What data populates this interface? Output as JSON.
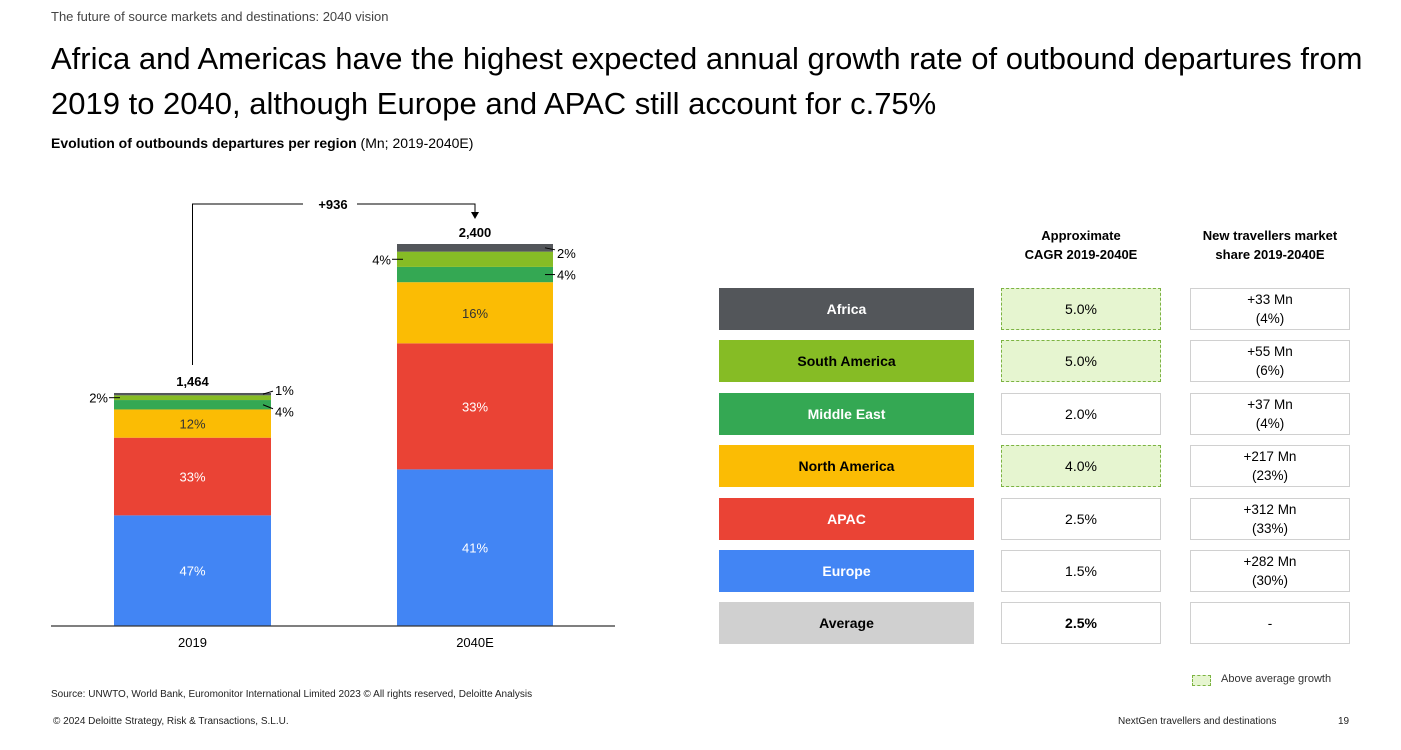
{
  "header": {
    "supertitle": "The future of source markets and destinations: 2040 vision",
    "title": "Africa and Americas have the highest expected annual growth rate of outbound departures from 2019 to 2040, although Europe and APAC still account for c.75%",
    "subtitle_bold": "Evolution of outbounds departures per region",
    "subtitle_rest": " (Mn; 2019-2040E)"
  },
  "chart_data": {
    "type": "bar",
    "stacked": true,
    "title": "Evolution of outbounds departures per region",
    "units": "Mn",
    "categories": [
      "2019",
      "2040E"
    ],
    "totals": [
      1464,
      2400
    ],
    "total_labels": [
      "1,464",
      "2,400"
    ],
    "growth_annotation": "+936",
    "series": [
      {
        "name": "Europe",
        "color": "#4285f4",
        "shares_pct": [
          47,
          41
        ],
        "labels": [
          "47%",
          "41%"
        ]
      },
      {
        "name": "APAC",
        "color": "#ea4335",
        "shares_pct": [
          33,
          33
        ],
        "labels": [
          "33%",
          "33%"
        ]
      },
      {
        "name": "North America",
        "color": "#fbbc04",
        "shares_pct": [
          12,
          16
        ],
        "labels": [
          "12%",
          "16%"
        ]
      },
      {
        "name": "Middle East",
        "color": "#34a853",
        "shares_pct": [
          4,
          4
        ],
        "labels": [
          "4%",
          "4%"
        ]
      },
      {
        "name": "South America",
        "color": "#86bc25",
        "shares_pct": [
          2,
          4
        ],
        "labels": [
          "2%",
          "4%"
        ]
      },
      {
        "name": "Africa",
        "color": "#53565a",
        "shares_pct": [
          1,
          2
        ],
        "labels": [
          "1%",
          "2%"
        ]
      }
    ],
    "xlabel": "",
    "ylabel": "",
    "grid": false
  },
  "table": {
    "col_headers": [
      "Approximate\nCAGR 2019-2040E",
      "New travellers market\nshare 2019-2040E"
    ],
    "col_header_lines": [
      [
        "Approximate",
        "CAGR 2019-2040E"
      ],
      [
        "New travellers market",
        "share 2019-2040E"
      ]
    ],
    "rows": [
      {
        "region": "Africa",
        "bg": "#53565a",
        "fg": "#ffffff",
        "cagr": "5.0%",
        "above_average": true,
        "new_mn": "+33 Mn",
        "share": "(4%)"
      },
      {
        "region": "South America",
        "bg": "#86bc25",
        "fg": "#000000",
        "cagr": "5.0%",
        "above_average": true,
        "new_mn": "+55 Mn",
        "share": "(6%)"
      },
      {
        "region": "Middle East",
        "bg": "#34a853",
        "fg": "#ffffff",
        "cagr": "2.0%",
        "above_average": false,
        "new_mn": "+37 Mn",
        "share": "(4%)"
      },
      {
        "region": "North America",
        "bg": "#fbbc04",
        "fg": "#000000",
        "cagr": "4.0%",
        "above_average": true,
        "new_mn": "+217 Mn",
        "share": "(23%)"
      },
      {
        "region": "APAC",
        "bg": "#ea4335",
        "fg": "#ffffff",
        "cagr": "2.5%",
        "above_average": false,
        "new_mn": "+312 Mn",
        "share": "(33%)"
      },
      {
        "region": "Europe",
        "bg": "#4285f4",
        "fg": "#ffffff",
        "cagr": "1.5%",
        "above_average": false,
        "new_mn": "+282 Mn",
        "share": "(30%)"
      },
      {
        "region": "Average",
        "bg": "#d0d0d0",
        "fg": "#000000",
        "cagr": "2.5%",
        "above_average": false,
        "bold_cagr": true,
        "new_mn": "-",
        "share": ""
      }
    ],
    "legend_label": "Above average growth"
  },
  "footer": {
    "source": "Source: UNWTO, World Bank, Euromonitor International Limited 2023 © All rights reserved, Deloitte Analysis",
    "copyright": "© 2024 Deloitte Strategy, Risk & Transactions, S.L.U.",
    "deck_title": "NextGen travellers and destinations",
    "page_number": "19"
  }
}
